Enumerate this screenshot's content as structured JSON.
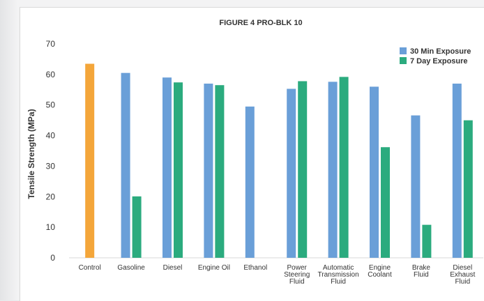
{
  "chart_data": {
    "type": "bar",
    "title": "FIGURE 4 PRO-BLK 10",
    "xlabel": "",
    "ylabel": "Tensile Strength (MPa)",
    "ylim": [
      0,
      70
    ],
    "yticks": [
      0,
      10,
      20,
      30,
      40,
      50,
      60,
      70
    ],
    "grid": false,
    "legend_position": "top-right",
    "categories": [
      "Control",
      "Gasoline",
      "Diesel",
      "Engine Oil",
      "Ethanol",
      "Power Steering Fluid",
      "Automatic Transmission Fluid",
      "Engine Coolant",
      "Brake Fluid",
      "Diesel Exhaust Fluid"
    ],
    "category_lines": [
      [
        "Control"
      ],
      [
        "Gasoline"
      ],
      [
        "Diesel"
      ],
      [
        "Engine Oil"
      ],
      [
        "Ethanol"
      ],
      [
        "Power",
        "Steering",
        "Fluid"
      ],
      [
        "Automatic",
        "Transmission",
        "Fluid"
      ],
      [
        "Engine",
        "Coolant"
      ],
      [
        "Brake",
        "Fluid"
      ],
      [
        "Diesel",
        "Exhaust",
        "Fluid"
      ]
    ],
    "control": {
      "value": 63.5,
      "color": "#f4a63a"
    },
    "series": [
      {
        "name": "30 Min Exposure",
        "color": "#6a9fd8",
        "values": [
          null,
          60.5,
          59.0,
          57.0,
          49.5,
          55.3,
          57.6,
          56.0,
          46.6,
          57.0
        ]
      },
      {
        "name": "7 Day Exposure",
        "color": "#2bab7e",
        "values": [
          null,
          20.1,
          57.4,
          56.5,
          null,
          57.8,
          59.2,
          36.2,
          10.8,
          45.0
        ]
      }
    ]
  }
}
